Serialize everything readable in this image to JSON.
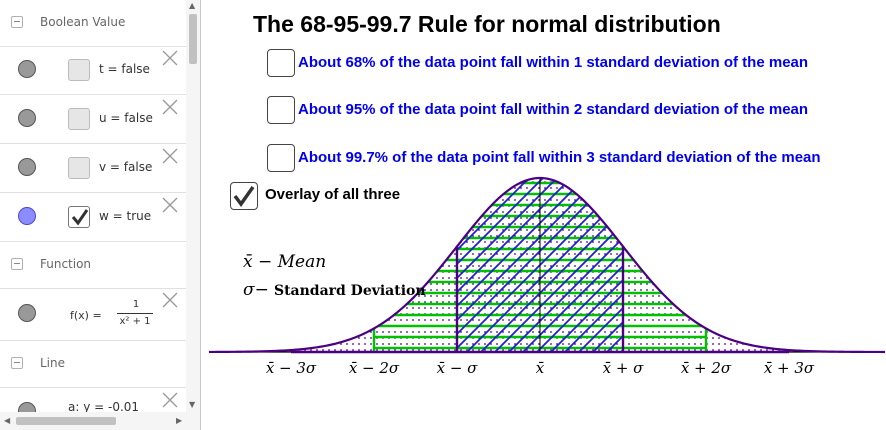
{
  "algebra_view": {
    "boolean_header": "Boolean Value",
    "booleans": [
      {
        "label": "t = false",
        "checked": false
      },
      {
        "label": "u = false",
        "checked": false
      },
      {
        "label": "v = false",
        "checked": false
      },
      {
        "label": "w = true",
        "checked": true
      }
    ],
    "function_header": "Function",
    "function_item": {
      "lhs": "f(x)  =",
      "numerator": "1",
      "denominator": "x² + 1"
    },
    "line_header": "Line",
    "line_item": {
      "label": "a: y = -0.01"
    }
  },
  "graphics": {
    "title": "The 68-95-99.7 Rule for normal distribution",
    "rules": [
      {
        "label": "About 68% of the data point fall within 1 standard deviation of the mean"
      },
      {
        "label": "About 95% of the data point fall within 2 standard deviation of the mean"
      },
      {
        "label": "About 99.7% of the data point fall within 3 standard deviation of the mean"
      }
    ],
    "overlay": {
      "label": "Overlay of all three",
      "checked": true
    },
    "legend_mean": "x̄ − Mean",
    "legend_std_symbol": "σ−",
    "legend_std_text": "Standard Deviation",
    "axis_labels": [
      "x̄ − 3σ",
      "x̄ − 2σ",
      "x̄ − σ",
      "x̄",
      "x̄ + σ",
      "x̄ + 2σ",
      "x̄ + 3σ"
    ]
  },
  "colors": {
    "curve": "#4b0082",
    "one_sigma_fill": "#2020d0",
    "two_sigma_lines": "#00c000",
    "three_sigma_dots": "#4b0082",
    "rule_text": "#0000ee"
  }
}
